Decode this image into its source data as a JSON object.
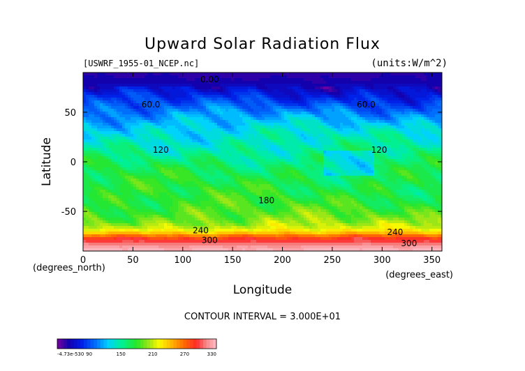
{
  "chart_data": {
    "type": "heatmap",
    "title": "Upward Solar Radiation Flux",
    "source_file": "[USWRF_1955-01_NCEP.nc]",
    "units_label": "(units:W/m^2)",
    "xlabel": "Longitude",
    "ylabel": "Latitude",
    "x_units": "(degrees_east)",
    "y_units": "(degrees_north)",
    "xlim": [
      0,
      360
    ],
    "ylim": [
      -90,
      90
    ],
    "x_ticks": [
      0,
      50,
      100,
      150,
      200,
      250,
      300,
      350
    ],
    "y_ticks": [
      50,
      0,
      -50
    ],
    "contour_interval_text": "CONTOUR INTERVAL = 3.000E+01",
    "contour_labels": [
      {
        "text": "0.00",
        "lon": 127,
        "lat": 80
      },
      {
        "text": "60.0",
        "lon": 68,
        "lat": 55
      },
      {
        "text": "60.0",
        "lon": 284,
        "lat": 55
      },
      {
        "text": "120",
        "lon": 78,
        "lat": 9
      },
      {
        "text": "120",
        "lon": 297,
        "lat": 9
      },
      {
        "text": "180",
        "lon": 184,
        "lat": -42
      },
      {
        "text": "240",
        "lon": 118,
        "lat": -72
      },
      {
        "text": "300",
        "lon": 127,
        "lat": -82
      },
      {
        "text": "240",
        "lon": 313,
        "lat": -74
      },
      {
        "text": "300",
        "lon": 327,
        "lat": -85
      }
    ],
    "colorbar": {
      "tick_labels": [
        "-4.73e-530",
        "90",
        "150",
        "210",
        "270",
        "330"
      ],
      "min": -15,
      "max": 345,
      "step": 7.5
    },
    "zonal_profile": [
      {
        "lat": 90,
        "value": 5
      },
      {
        "lat": 80,
        "value": 10
      },
      {
        "lat": 72,
        "value": 28
      },
      {
        "lat": 62,
        "value": 50
      },
      {
        "lat": 52,
        "value": 72
      },
      {
        "lat": 42,
        "value": 92
      },
      {
        "lat": 32,
        "value": 108
      },
      {
        "lat": 22,
        "value": 118
      },
      {
        "lat": 12,
        "value": 128
      },
      {
        "lat": 2,
        "value": 140
      },
      {
        "lat": -8,
        "value": 150
      },
      {
        "lat": -20,
        "value": 155
      },
      {
        "lat": -32,
        "value": 158
      },
      {
        "lat": -44,
        "value": 165
      },
      {
        "lat": -54,
        "value": 175
      },
      {
        "lat": -62,
        "value": 190
      },
      {
        "lat": -68,
        "value": 210
      },
      {
        "lat": -72,
        "value": 240
      },
      {
        "lat": -76,
        "value": 285
      },
      {
        "lat": -80,
        "value": 305
      },
      {
        "lat": -84,
        "value": 325
      },
      {
        "lat": -88,
        "value": 338
      },
      {
        "lat": -90,
        "value": 340
      }
    ]
  }
}
